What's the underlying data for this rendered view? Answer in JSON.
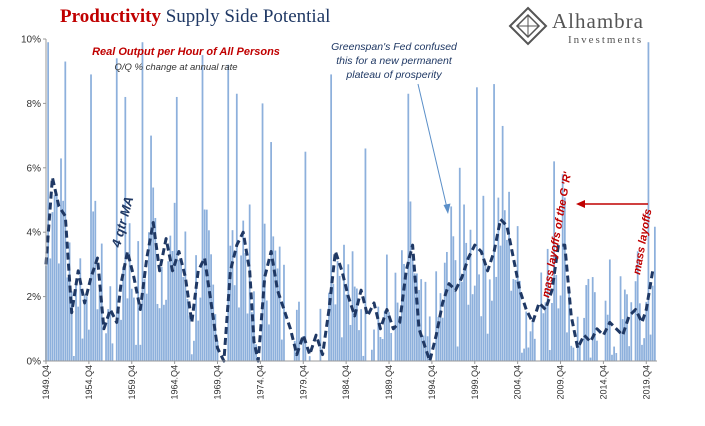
{
  "title": {
    "bold": "Productivity",
    "rest": " Supply Side Potential"
  },
  "logo": {
    "name": "Alhambra",
    "sub": "Investments",
    "icon": "alhambra-diamond-logo"
  },
  "colors": {
    "bars": "#8db0dc",
    "ma_line": "#1f3864",
    "red": "#c00000",
    "arrow_blue": "#5b8fc8"
  },
  "chart_data": {
    "type": "bar",
    "subtitle": "Real Output per Hour of All Persons",
    "unit_note": "Q/Q % change at annual rate",
    "ylim": [
      0,
      10
    ],
    "y_ticks": [
      "0%",
      "2%",
      "4%",
      "6%",
      "8%",
      "10%"
    ],
    "x_ticks": [
      "1949.Q4",
      "1954.Q4",
      "1959.Q4",
      "1964.Q4",
      "1969.Q4",
      "1974.Q4",
      "1979.Q4",
      "1984.Q4",
      "1989.Q4",
      "1994.Q4",
      "1999.Q4",
      "2004.Q4",
      "2009.Q4",
      "2014.Q4",
      "2019.Q4"
    ],
    "x_range": [
      1949.75,
      2021.0
    ],
    "grid": false,
    "series": [
      {
        "name": "Q/Q % change at annual rate",
        "kind": "bars"
      },
      {
        "name": "4 qtr MA",
        "kind": "line",
        "style": "dashed",
        "points": [
          [
            1949.75,
            3.0
          ],
          [
            1950.5,
            5.7
          ],
          [
            1951.25,
            4.8
          ],
          [
            1952.0,
            4.5
          ],
          [
            1952.75,
            1.5
          ],
          [
            1953.5,
            2.8
          ],
          [
            1954.25,
            1.8
          ],
          [
            1955.0,
            2.6
          ],
          [
            1955.75,
            3.2
          ],
          [
            1956.5,
            1.0
          ],
          [
            1957.25,
            1.6
          ],
          [
            1958.0,
            1.2
          ],
          [
            1958.5,
            2.4
          ],
          [
            1959.25,
            3.4
          ],
          [
            1960.0,
            2.6
          ],
          [
            1960.75,
            1.6
          ],
          [
            1961.5,
            3.2
          ],
          [
            1962.25,
            4.3
          ],
          [
            1963.0,
            2.8
          ],
          [
            1963.75,
            3.8
          ],
          [
            1964.5,
            2.8
          ],
          [
            1965.25,
            3.4
          ],
          [
            1966.0,
            2.6
          ],
          [
            1966.75,
            1.2
          ],
          [
            1967.5,
            2.8
          ],
          [
            1968.25,
            3.2
          ],
          [
            1969.0,
            1.8
          ],
          [
            1969.75,
            0.4
          ],
          [
            1970.5,
            0.0
          ],
          [
            1971.25,
            2.8
          ],
          [
            1972.0,
            3.6
          ],
          [
            1972.75,
            4.0
          ],
          [
            1973.5,
            2.8
          ],
          [
            1974.0,
            0.6
          ],
          [
            1974.5,
            -0.3
          ],
          [
            1975.25,
            2.6
          ],
          [
            1976.0,
            3.4
          ],
          [
            1976.75,
            2.2
          ],
          [
            1977.5,
            1.6
          ],
          [
            1978.25,
            1.0
          ],
          [
            1979.0,
            0.2
          ],
          [
            1979.75,
            0.8
          ],
          [
            1980.5,
            0.2
          ],
          [
            1981.25,
            0.8
          ],
          [
            1982.0,
            0.2
          ],
          [
            1982.75,
            1.6
          ],
          [
            1983.5,
            3.4
          ],
          [
            1984.25,
            2.8
          ],
          [
            1985.0,
            2.0
          ],
          [
            1985.75,
            1.4
          ],
          [
            1986.5,
            2.2
          ],
          [
            1987.25,
            1.4
          ],
          [
            1988.0,
            1.8
          ],
          [
            1988.75,
            1.0
          ],
          [
            1989.5,
            1.6
          ],
          [
            1990.25,
            1.0
          ],
          [
            1991.0,
            1.2
          ],
          [
            1991.75,
            2.8
          ],
          [
            1992.5,
            3.6
          ],
          [
            1993.25,
            1.0
          ],
          [
            1994.0,
            0.4
          ],
          [
            1994.5,
            0.0
          ],
          [
            1995.25,
            0.8
          ],
          [
            1996.0,
            1.8
          ],
          [
            1996.75,
            2.4
          ],
          [
            1997.5,
            2.2
          ],
          [
            1998.25,
            2.6
          ],
          [
            1999.0,
            3.2
          ],
          [
            1999.75,
            3.6
          ],
          [
            2000.5,
            3.4
          ],
          [
            2001.25,
            2.8
          ],
          [
            2002.0,
            3.4
          ],
          [
            2002.75,
            4.4
          ],
          [
            2003.5,
            4.2
          ],
          [
            2004.25,
            3.2
          ],
          [
            2005.0,
            2.2
          ],
          [
            2005.75,
            1.6
          ],
          [
            2006.5,
            1.2
          ],
          [
            2007.25,
            1.8
          ],
          [
            2008.0,
            1.6
          ],
          [
            2008.75,
            2.2
          ],
          [
            2009.5,
            3.6
          ],
          [
            2010.25,
            3.6
          ],
          [
            2011.0,
            1.4
          ],
          [
            2011.75,
            0.4
          ],
          [
            2012.5,
            0.8
          ],
          [
            2013.25,
            0.6
          ],
          [
            2014.0,
            1.0
          ],
          [
            2014.75,
            0.8
          ],
          [
            2015.5,
            1.2
          ],
          [
            2016.25,
            1.0
          ],
          [
            2017.0,
            0.8
          ],
          [
            2017.75,
            1.4
          ],
          [
            2018.5,
            1.6
          ],
          [
            2019.25,
            1.2
          ],
          [
            2019.75,
            1.6
          ],
          [
            2020.5,
            2.8
          ]
        ]
      }
    ],
    "annotations": [
      {
        "text": "Greenspan's Fed confused",
        "color": "#1f3864"
      },
      {
        "text": "this for a new permanent",
        "color": "#1f3864"
      },
      {
        "text": "plateau of prosperity",
        "color": "#1f3864"
      },
      {
        "text": "4 qtr MA",
        "color": "#1f3864"
      },
      {
        "text": "mass layoffs of the G 'R'",
        "color": "#c00000"
      },
      {
        "text": "mass layoffs",
        "color": "#c00000"
      }
    ]
  }
}
